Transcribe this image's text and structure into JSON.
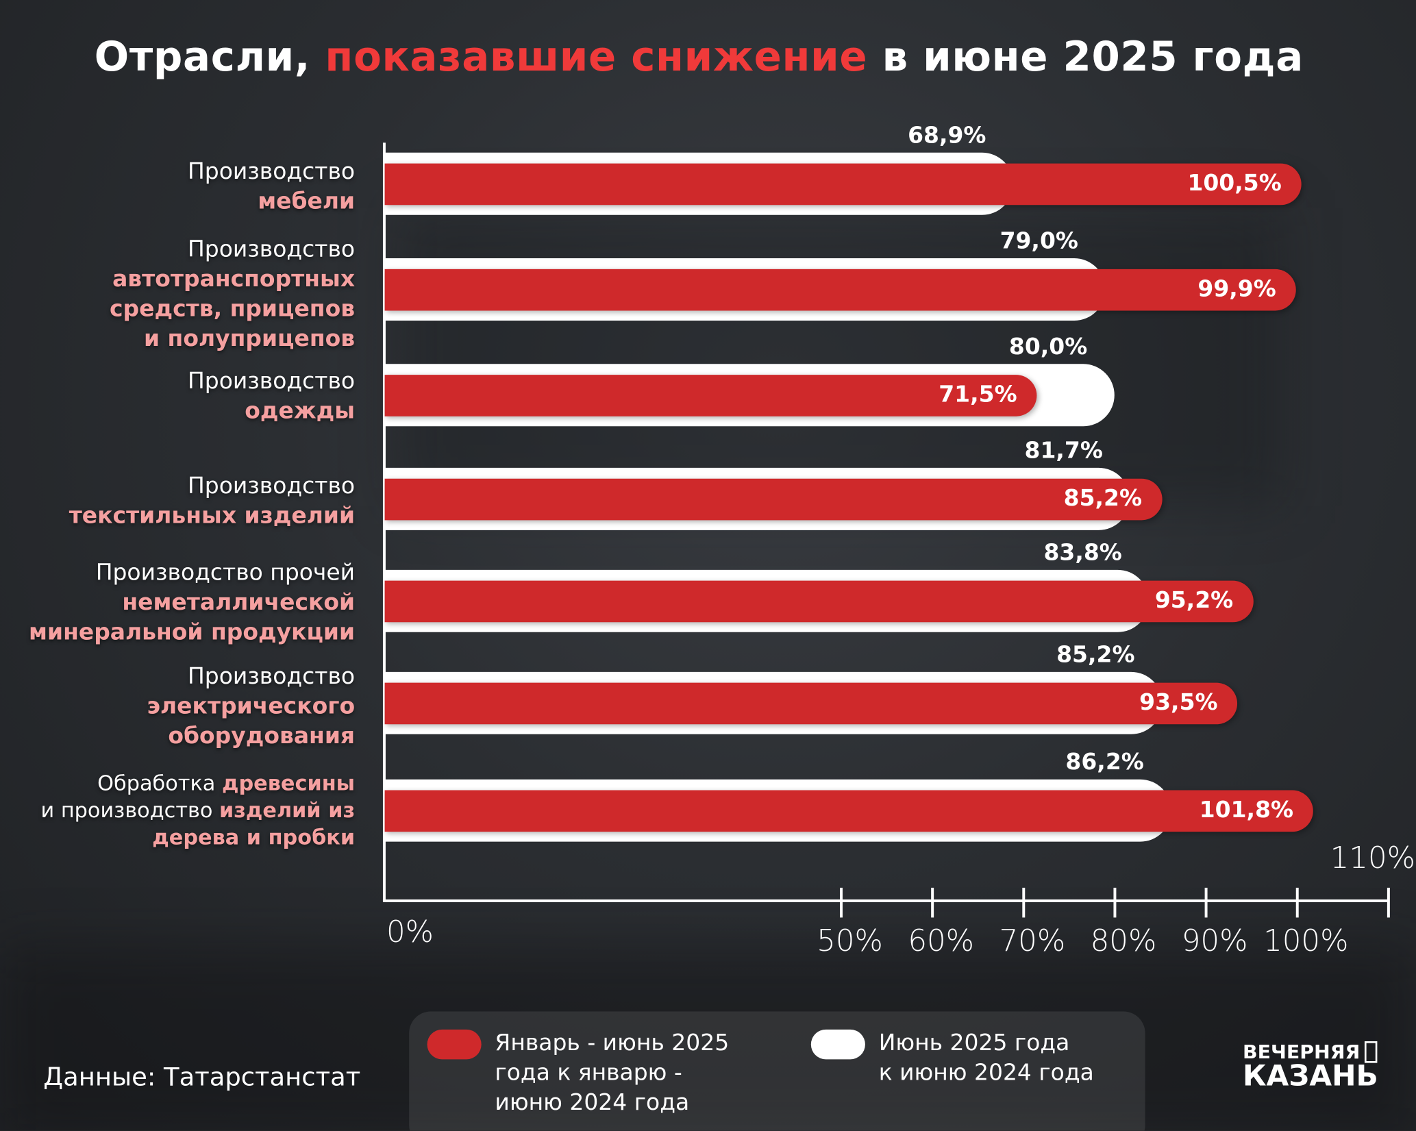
{
  "title": {
    "part1": "Отрасли, ",
    "highlight": "показавшие снижение",
    "part2": " в июне 2025 года"
  },
  "colors": {
    "red": "#cf292b",
    "white": "#ffffff",
    "highlight_text": "#f5a0a0",
    "title_highlight": "#f03a3a"
  },
  "chart_data": {
    "type": "bar",
    "orientation": "horizontal",
    "title": "Отрасли, показавшие снижение в июне 2025 года",
    "categories": [
      {
        "lines": [
          [
            {
              "t": "Производство",
              "h": false
            }
          ],
          [
            {
              "t": "мебели",
              "h": true
            }
          ]
        ]
      },
      {
        "lines": [
          [
            {
              "t": "Производство",
              "h": false
            }
          ],
          [
            {
              "t": "автотранспортных",
              "h": true
            }
          ],
          [
            {
              "t": "средств, прицепов",
              "h": true
            }
          ],
          [
            {
              "t": "и полуприцепов",
              "h": true
            }
          ]
        ]
      },
      {
        "lines": [
          [
            {
              "t": "Производство",
              "h": false
            }
          ],
          [
            {
              "t": "одежды",
              "h": true
            }
          ]
        ]
      },
      {
        "lines": [
          [
            {
              "t": "Производство",
              "h": false
            }
          ],
          [
            {
              "t": "текстильных изделий",
              "h": true
            }
          ]
        ]
      },
      {
        "lines": [
          [
            {
              "t": "Производство прочей",
              "h": false
            }
          ],
          [
            {
              "t": "неметаллической",
              "h": true
            }
          ],
          [
            {
              "t": "минеральной продукции",
              "h": true
            }
          ]
        ]
      },
      {
        "lines": [
          [
            {
              "t": "Производство",
              "h": false
            }
          ],
          [
            {
              "t": "электрического",
              "h": true
            }
          ],
          [
            {
              "t": "оборудования",
              "h": true
            }
          ]
        ]
      },
      {
        "lines": [
          [
            {
              "t": "Обработка ",
              "h": false
            },
            {
              "t": "древесины",
              "h": true
            }
          ],
          [
            {
              "t": "и производство ",
              "h": false
            },
            {
              "t": "изделий из",
              "h": true
            }
          ],
          [
            {
              "t": "дерева и пробки",
              "h": true
            }
          ]
        ]
      }
    ],
    "series": [
      {
        "name": "Июнь 2025 года к июню 2024 года",
        "color": "#ffffff",
        "values": [
          68.9,
          79.0,
          80.0,
          81.7,
          83.8,
          85.2,
          86.2
        ],
        "labels": [
          "68,9%",
          "79,0%",
          "80,0%",
          "81,7%",
          "83,8%",
          "85,2%",
          "86,2%"
        ]
      },
      {
        "name": "Январь - июнь 2025 года к январю - июню 2024 года",
        "color": "#cf292b",
        "values": [
          100.5,
          99.9,
          71.5,
          85.2,
          95.2,
          93.5,
          101.8
        ],
        "labels": [
          "100,5%",
          "99,9%",
          "71,5%",
          "85,2%",
          "95,2%",
          "93,5%",
          "101,8%"
        ]
      }
    ],
    "xlim": [
      0,
      110
    ],
    "xticks": [
      {
        "v": 0,
        "label": "0%"
      },
      {
        "v": 50,
        "label": "50%"
      },
      {
        "v": 60,
        "label": "60%"
      },
      {
        "v": 70,
        "label": "70%"
      },
      {
        "v": 80,
        "label": "80%"
      },
      {
        "v": 90,
        "label": "90%"
      },
      {
        "v": 100,
        "label": "100%"
      },
      {
        "v": 110,
        "label": "110%"
      }
    ],
    "legend_placement": "bottom"
  },
  "legend": {
    "red_lines": [
      "Январь - июнь 2025",
      "года к январю -",
      "июню 2024 года"
    ],
    "white_lines": [
      "Июнь 2025 года",
      "к июню 2024 года"
    ]
  },
  "source": "Данные: Татарстанстат",
  "logo": {
    "line1": "ВЕЧЕРНЯЯ",
    "line2": "КАЗАНЬ"
  }
}
